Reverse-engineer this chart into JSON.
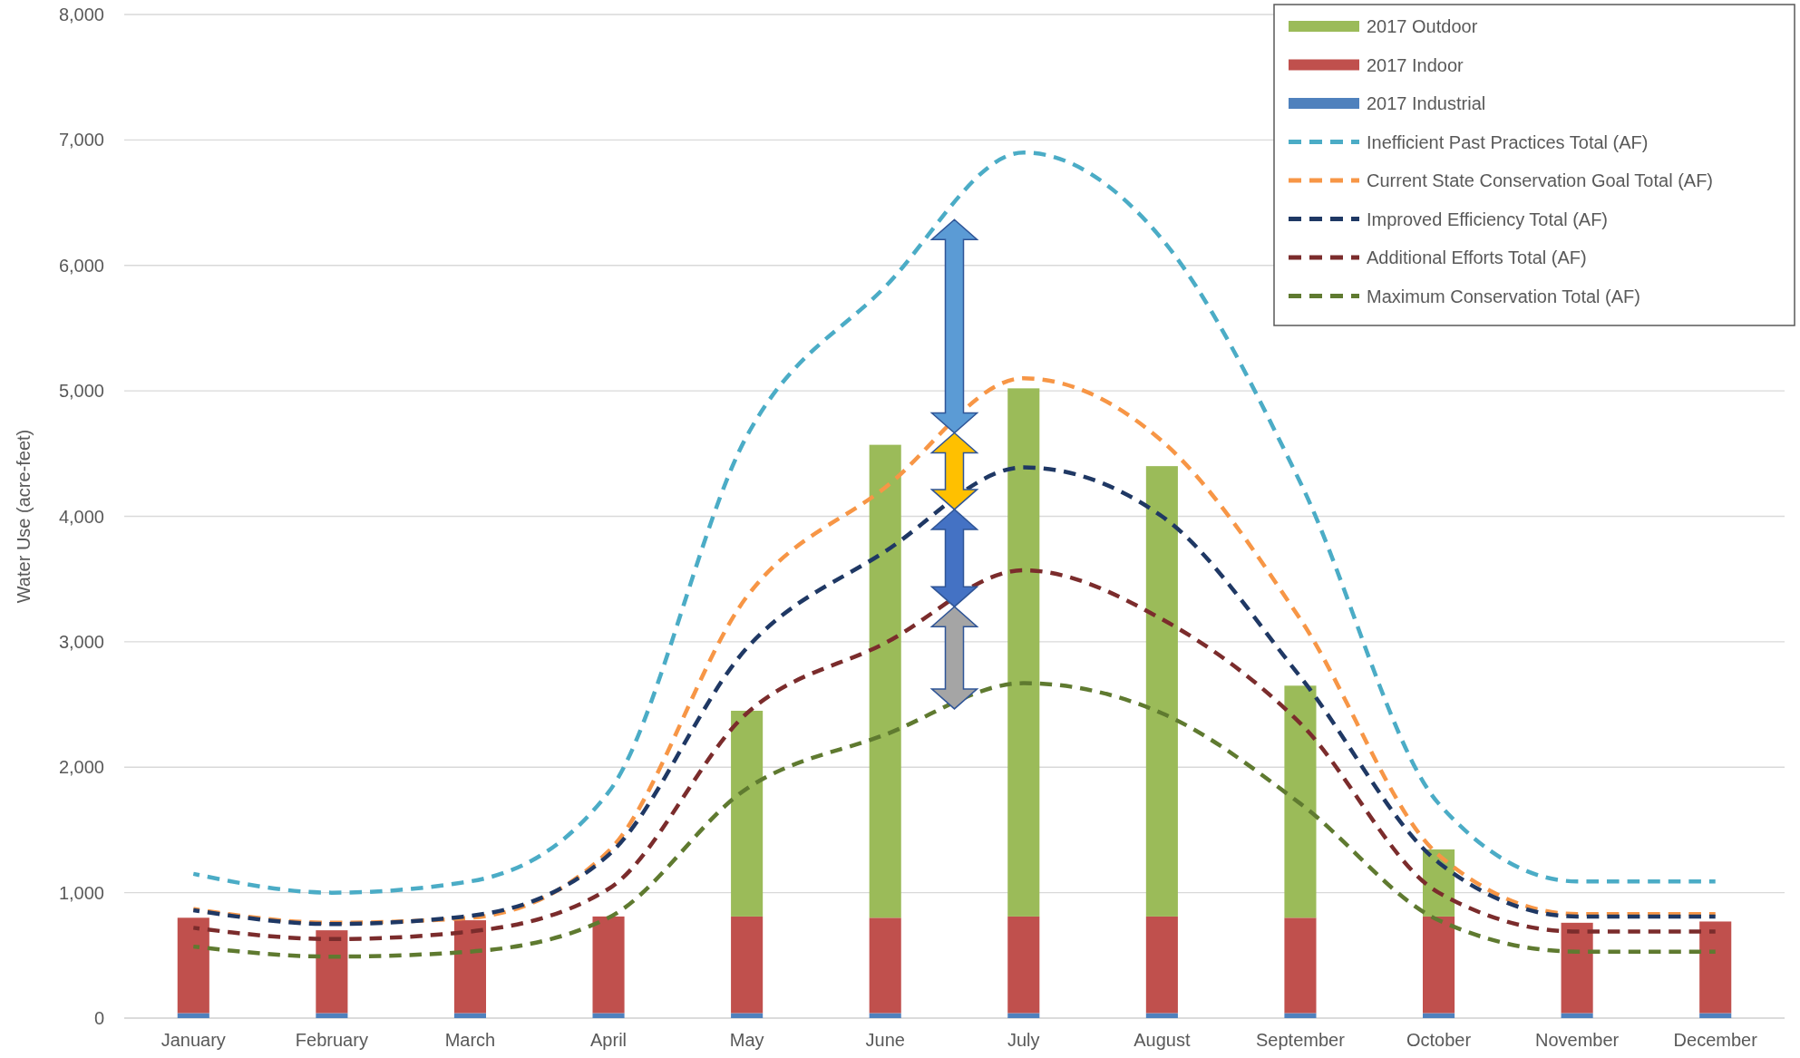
{
  "chart_data": {
    "type": "bar",
    "ylabel": "Water Use (acre-feet)",
    "categories": [
      "January",
      "February",
      "March",
      "April",
      "May",
      "June",
      "July",
      "August",
      "September",
      "October",
      "November",
      "December"
    ],
    "stacked": true,
    "ylim": [
      0,
      8000
    ],
    "yticks": [
      0,
      {
        "value": 1000,
        "label": "1,000"
      },
      {
        "value": 2000,
        "label": "2,000"
      },
      {
        "value": 3000,
        "label": "3,000"
      },
      {
        "value": 4000,
        "label": "4,000"
      },
      {
        "value": 5000,
        "label": "5,000"
      },
      {
        "value": 6000,
        "label": "6,000"
      },
      {
        "value": 7000,
        "label": "7,000"
      },
      {
        "value": 8000,
        "label": "8,000"
      }
    ],
    "grid": "y",
    "legend": "top right",
    "series": [
      {
        "name": "2017 Industrial",
        "type": "bar",
        "color": "#4f81bd",
        "values": [
          40,
          40,
          40,
          40,
          40,
          40,
          40,
          40,
          40,
          40,
          40,
          40
        ]
      },
      {
        "name": "2017 Indoor",
        "type": "bar",
        "color": "#c0504d",
        "values": [
          760,
          660,
          740,
          770,
          770,
          760,
          770,
          770,
          760,
          770,
          720,
          730
        ]
      },
      {
        "name": "2017 Outdoor",
        "type": "bar",
        "color": "#9bbb59",
        "values": [
          0,
          0,
          0,
          0,
          1640,
          3770,
          4210,
          3590,
          1850,
          535,
          0,
          0
        ]
      },
      {
        "name": "Inefficient Past Practices Total (AF)",
        "type": "line",
        "line_style": "dashed",
        "marker": "none",
        "color": "#4bacc6",
        "values": [
          1150,
          1000,
          1090,
          1800,
          4640,
          5830,
          6900,
          6210,
          4270,
          1710,
          1090,
          1090
        ]
      },
      {
        "name": "Current State Conservation Goal Total (AF)",
        "type": "line",
        "line_style": "dashed",
        "marker": "none",
        "color": "#f79646",
        "values": [
          870,
          760,
          800,
          1330,
          3360,
          4230,
          5100,
          4600,
          3180,
          1300,
          830,
          830
        ]
      },
      {
        "name": "Improved Efficiency Total (AF)",
        "type": "line",
        "line_style": "dashed",
        "marker": "none",
        "color": "#1f3864",
        "values": [
          860,
          750,
          815,
          1300,
          2950,
          3720,
          4390,
          4000,
          2720,
          1240,
          810,
          810
        ]
      },
      {
        "name": "Additional Efforts Total (AF)",
        "type": "line",
        "line_style": "dashed",
        "marker": "none",
        "color": "#7b2c2c",
        "values": [
          720,
          630,
          690,
          1030,
          2430,
          2990,
          3570,
          3180,
          2350,
          1000,
          690,
          690
        ]
      },
      {
        "name": "Maximum Conservation Total (AF)",
        "type": "line",
        "line_style": "dashed",
        "marker": "none",
        "color": "#5f7a30",
        "values": [
          570,
          490,
          530,
          800,
          1830,
          2260,
          2670,
          2430,
          1710,
          780,
          530,
          530
        ]
      }
    ]
  }
}
